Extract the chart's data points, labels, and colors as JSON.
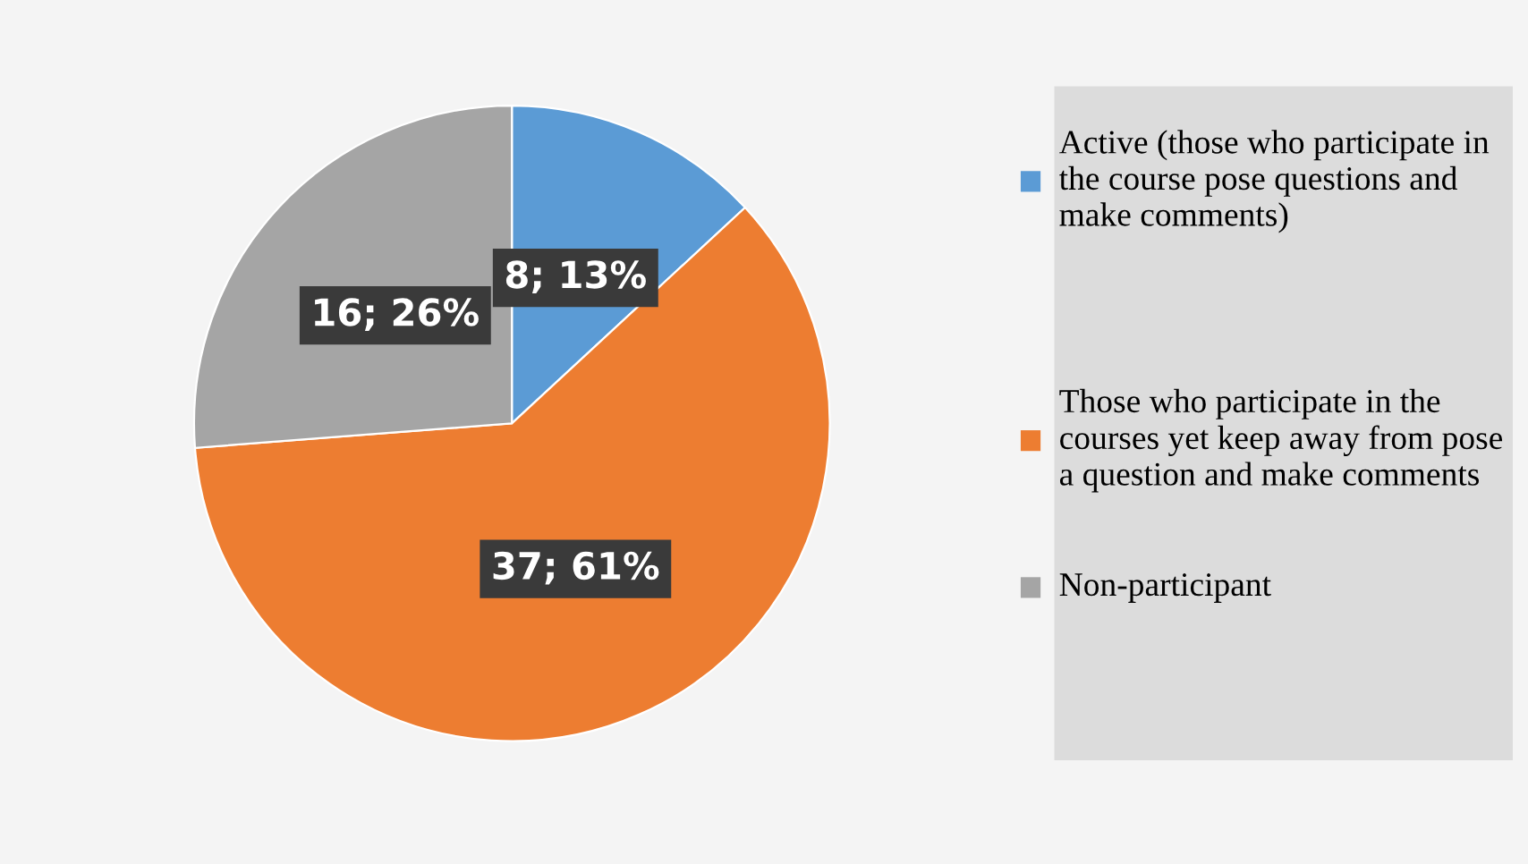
{
  "chart_data": {
    "type": "pie",
    "categories": [
      "Active (those who participate in the course pose questions and make comments)",
      "Those who participate in the courses yet keep away from pose a question and make comments",
      "Non-participant"
    ],
    "values": [
      8,
      37,
      16
    ],
    "colors": [
      "#5b9bd5",
      "#ed7d31",
      "#a5a5a5"
    ],
    "value_labels": [
      "8; 13%",
      "37; 61%",
      "16; 26%"
    ],
    "legend": "right"
  }
}
